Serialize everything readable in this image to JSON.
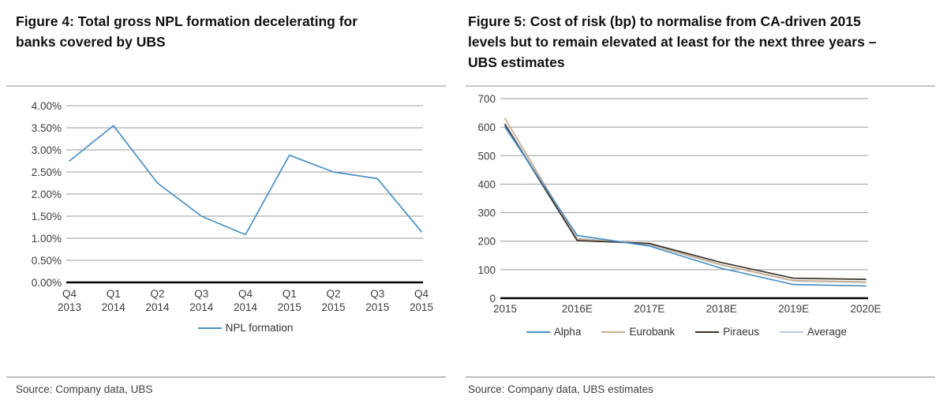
{
  "figures": [
    {
      "title": "Figure 4: Total gross NPL formation decelerating for banks covered by UBS",
      "source": "Source: Company data, UBS"
    },
    {
      "title": "Figure 5: Cost of risk (bp) to normalise from CA-driven 2015 levels but to remain elevated at least for the next three years – UBS estimates",
      "source": "Source: Company data, UBS estimates"
    }
  ],
  "chart_data": [
    {
      "type": "line",
      "title": "Total gross NPL formation",
      "categories": [
        "Q4 2013",
        "Q1 2014",
        "Q2 2014",
        "Q3 2014",
        "Q4 2014",
        "Q1 2015",
        "Q2 2015",
        "Q3 2015",
        "Q4 2015"
      ],
      "series": [
        {
          "name": "NPL formation",
          "color": "#4a90c4",
          "values": [
            2.75,
            3.55,
            2.25,
            1.5,
            1.08,
            2.88,
            2.5,
            2.35,
            1.15
          ]
        }
      ],
      "ylim": [
        0,
        4
      ],
      "ytick_labels": [
        "0.00%",
        "0.50%",
        "1.00%",
        "1.50%",
        "2.00%",
        "2.50%",
        "3.00%",
        "3.50%",
        "4.00%"
      ],
      "grid": true,
      "legend_position": "bottom",
      "draw_order": [
        0
      ]
    },
    {
      "type": "line",
      "title": "Cost of risk (bp)",
      "categories": [
        "2015",
        "2016E",
        "2017E",
        "2018E",
        "2019E",
        "2020E"
      ],
      "series": [
        {
          "name": "Alpha",
          "color": "#4a90c4",
          "values": [
            600,
            220,
            183,
            105,
            48,
            43
          ]
        },
        {
          "name": "Eurobank",
          "color": "#c9ab8e",
          "values": [
            630,
            207,
            190,
            117,
            62,
            57
          ]
        },
        {
          "name": "Piraeus",
          "color": "#3a332d",
          "values": [
            608,
            202,
            192,
            125,
            70,
            66
          ]
        },
        {
          "name": "Average",
          "color": "#b9c7d3",
          "values": [
            613,
            210,
            188,
            116,
            60,
            55
          ]
        }
      ],
      "ylim": [
        0,
        700
      ],
      "ytick_labels": [
        "0",
        "100",
        "200",
        "300",
        "400",
        "500",
        "600",
        "700"
      ],
      "grid": true,
      "legend_position": "bottom",
      "draw_order": [
        3,
        1,
        2,
        0
      ]
    }
  ]
}
